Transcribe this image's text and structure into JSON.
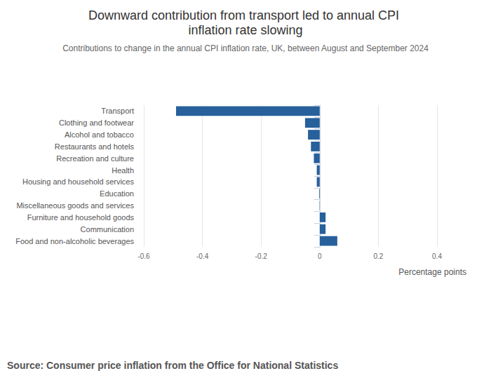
{
  "chart_data": {
    "type": "bar",
    "orientation": "horizontal",
    "title": "Downward contribution from transport led to annual CPI inflation rate slowing",
    "subtitle": "Contributions to change in the annual CPI inflation rate, UK, between August and September 2024",
    "x_label": "Percentage points",
    "source": "Source: Consumer price inflation from the Office for National Statistics",
    "categories": [
      "Transport",
      "Clothing and footwear",
      "Alcohol and tobacco",
      "Restaurants and hotels",
      "Recreation and culture",
      "Health",
      "Housing and household services",
      "Education",
      "Miscellaneous goods and services",
      "Furniture and household goods",
      "Communication",
      "Food and non-alcoholic beverages"
    ],
    "values": [
      -0.49,
      -0.05,
      -0.04,
      -0.03,
      -0.02,
      -0.01,
      -0.01,
      -0.002,
      -0.001,
      0.02,
      0.02,
      0.06
    ],
    "color": "#27609b",
    "xlim": [
      -0.6,
      0.4
    ],
    "xticks": [
      -0.6,
      -0.4,
      -0.2,
      0,
      0.2,
      0.4
    ],
    "grid": true
  }
}
